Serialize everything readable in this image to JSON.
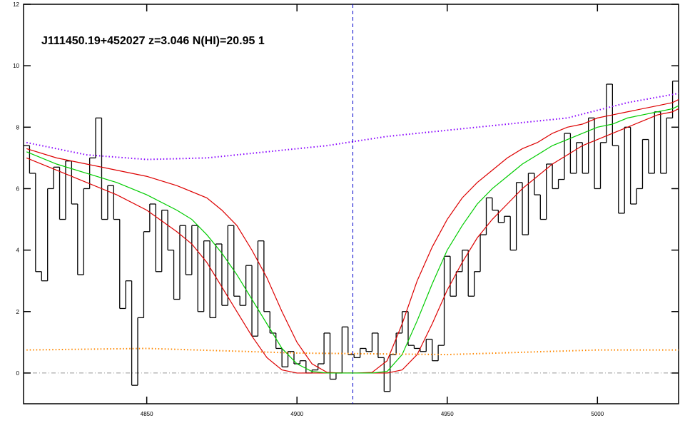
{
  "chart_data": {
    "type": "line",
    "title": "J111450.19+452027 z=3.046 N(HI)=20.95 1",
    "xlim": [
      4809,
      5027
    ],
    "ylim": [
      -1,
      12
    ],
    "xticks": [
      4850,
      4900,
      4950,
      5000
    ],
    "yticks": [
      0,
      2,
      4,
      6,
      8,
      10,
      12
    ],
    "hline": {
      "value": 0,
      "color": "#999999",
      "style": "dashdot"
    },
    "vline": {
      "value": 4918.6,
      "color": "#0000cc",
      "style": "dashed"
    },
    "series": [
      {
        "color": "#000000",
        "style": "steps",
        "x": [
          4810,
          4812,
          4814,
          4816,
          4818,
          4820,
          4822,
          4824,
          4826,
          4828,
          4830,
          4832,
          4834,
          4836,
          4838,
          4840,
          4842,
          4844,
          4846,
          4848,
          4850,
          4852,
          4854,
          4856,
          4858,
          4860,
          4862,
          4864,
          4866,
          4868,
          4870,
          4872,
          4874,
          4876,
          4878,
          4880,
          4882,
          4884,
          4886,
          4888,
          4890,
          4892,
          4894,
          4896,
          4898,
          4900,
          4902,
          4904,
          4906,
          4908,
          4910,
          4912,
          4914,
          4916,
          4918,
          4920,
          4922,
          4924,
          4926,
          4928,
          4930,
          4932,
          4934,
          4936,
          4938,
          4940,
          4942,
          4944,
          4946,
          4948,
          4950,
          4952,
          4954,
          4956,
          4958,
          4960,
          4962,
          4964,
          4966,
          4968,
          4970,
          4972,
          4974,
          4976,
          4978,
          4980,
          4982,
          4984,
          4986,
          4988,
          4990,
          4992,
          4994,
          4996,
          4998,
          5000,
          5002,
          5004,
          5006,
          5008,
          5010,
          5012,
          5014,
          5016,
          5018,
          5020,
          5022,
          5024,
          5026
        ],
        "values": [
          7.4,
          6.5,
          3.3,
          3.0,
          6.0,
          6.7,
          5.0,
          6.9,
          5.5,
          3.2,
          6.0,
          7.0,
          8.3,
          5.0,
          6.1,
          5.0,
          2.1,
          3.0,
          -0.4,
          1.8,
          4.6,
          5.5,
          3.3,
          5.3,
          4.0,
          2.4,
          4.8,
          3.2,
          4.8,
          2.0,
          4.3,
          1.8,
          4.2,
          2.2,
          4.8,
          2.5,
          2.2,
          3.5,
          1.2,
          4.3,
          2.0,
          1.3,
          0.8,
          0.2,
          0.7,
          0.3,
          0.4,
          0.0,
          0.1,
          0.3,
          1.3,
          -0.2,
          0.0,
          1.5,
          0.6,
          0.5,
          0.8,
          0.7,
          1.3,
          0.5,
          -0.6,
          0.6,
          1.3,
          2.0,
          0.9,
          0.8,
          0.7,
          1.1,
          0.4,
          0.9,
          3.8,
          2.5,
          3.3,
          4.0,
          2.5,
          3.3,
          4.5,
          5.7,
          5.3,
          4.9,
          5.1,
          4.0,
          6.2,
          4.5,
          6.5,
          5.8,
          5.0,
          6.8,
          6.0,
          6.3,
          7.8,
          6.5,
          7.5,
          6.5,
          8.3,
          6.0,
          7.5,
          9.4,
          7.4,
          5.2,
          8.0,
          5.5,
          6.0,
          7.6,
          6.5,
          8.5,
          6.5,
          8.3,
          9.5
        ]
      },
      {
        "color": "#dd0000",
        "style": "solid",
        "x": [
          4810,
          4820,
          4830,
          4840,
          4850,
          4860,
          4870,
          4875,
          4880,
          4885,
          4890,
          4895,
          4900,
          4905,
          4910,
          4915,
          4920,
          4925,
          4930,
          4935,
          4940,
          4945,
          4950,
          4955,
          4960,
          4965,
          4970,
          4975,
          4980,
          4985,
          4990,
          4995,
          5000,
          5005,
          5010,
          5015,
          5020,
          5025,
          5027
        ],
        "values": [
          7.3,
          7.0,
          6.8,
          6.6,
          6.4,
          6.1,
          5.7,
          5.3,
          4.8,
          4.0,
          3.1,
          2.0,
          1.0,
          0.3,
          0.02,
          0,
          0,
          0.02,
          0.4,
          1.6,
          3.0,
          4.1,
          5.0,
          5.7,
          6.2,
          6.6,
          7.0,
          7.3,
          7.5,
          7.8,
          8.0,
          8.1,
          8.3,
          8.4,
          8.5,
          8.6,
          8.7,
          8.8,
          8.9
        ]
      },
      {
        "color": "#dd0000",
        "style": "solid",
        "x": [
          4810,
          4820,
          4830,
          4840,
          4850,
          4860,
          4865,
          4870,
          4875,
          4880,
          4885,
          4890,
          4895,
          4900,
          4905,
          4910,
          4915,
          4920,
          4925,
          4930,
          4935,
          4940,
          4945,
          4950,
          4955,
          4960,
          4965,
          4970,
          4975,
          4980,
          4985,
          4990,
          4995,
          5000,
          5005,
          5010,
          5015,
          5020,
          5025,
          5027
        ],
        "values": [
          7.0,
          6.6,
          6.2,
          5.8,
          5.3,
          4.6,
          4.2,
          3.6,
          2.8,
          2.0,
          1.2,
          0.5,
          0.1,
          0,
          0,
          0,
          0,
          0,
          0,
          0,
          0.1,
          0.6,
          1.6,
          2.7,
          3.6,
          4.4,
          5.0,
          5.5,
          6.0,
          6.4,
          6.8,
          7.1,
          7.4,
          7.6,
          7.8,
          8.0,
          8.2,
          8.4,
          8.5,
          8.6
        ]
      },
      {
        "color": "#00cc00",
        "style": "solid",
        "x": [
          4810,
          4820,
          4830,
          4840,
          4850,
          4860,
          4865,
          4870,
          4875,
          4880,
          4885,
          4890,
          4895,
          4900,
          4905,
          4910,
          4915,
          4920,
          4925,
          4930,
          4935,
          4940,
          4945,
          4950,
          4955,
          4960,
          4965,
          4970,
          4975,
          4980,
          4985,
          4990,
          4995,
          5000,
          5005,
          5010,
          5015,
          5020,
          5025,
          5027
        ],
        "values": [
          7.2,
          6.8,
          6.5,
          6.2,
          5.8,
          5.3,
          5.0,
          4.5,
          3.9,
          3.2,
          2.4,
          1.6,
          0.8,
          0.3,
          0.05,
          0,
          0,
          0,
          0,
          0.05,
          0.6,
          1.7,
          2.9,
          4.0,
          4.8,
          5.5,
          6.0,
          6.4,
          6.8,
          7.1,
          7.4,
          7.6,
          7.8,
          8.0,
          8.1,
          8.3,
          8.4,
          8.5,
          8.6,
          8.7
        ]
      },
      {
        "color": "#8800ff",
        "style": "dotted",
        "x": [
          4810,
          4830,
          4850,
          4870,
          4890,
          4910,
          4930,
          4950,
          4970,
          4990,
          5010,
          5027
        ],
        "values": [
          7.5,
          7.1,
          6.95,
          7.0,
          7.2,
          7.4,
          7.7,
          7.9,
          8.1,
          8.3,
          8.8,
          9.1
        ]
      },
      {
        "color": "#ff8800",
        "style": "dotted",
        "x": [
          4810,
          4850,
          4900,
          4950,
          5000,
          5027
        ],
        "values": [
          0.75,
          0.8,
          0.65,
          0.6,
          0.75,
          0.75
        ]
      }
    ]
  }
}
